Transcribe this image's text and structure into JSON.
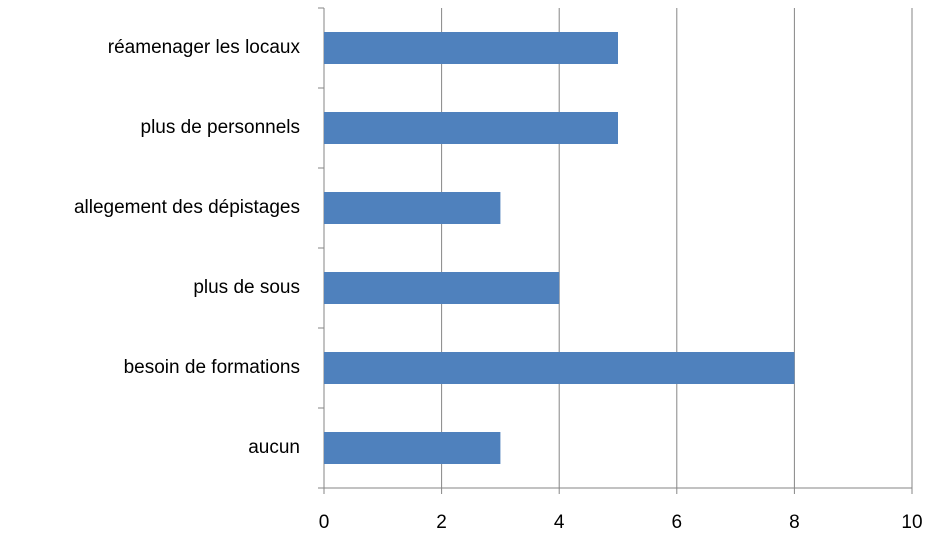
{
  "chart_data": {
    "type": "bar",
    "orientation": "horizontal",
    "categories": [
      "réamenager les locaux",
      "plus de personnels",
      "allegement des dépistages",
      "plus de sous",
      "besoin de formations",
      "aucun"
    ],
    "values": [
      5,
      5,
      3,
      4,
      8,
      3
    ],
    "color": "#4f81bd",
    "xlim": [
      0,
      10
    ],
    "xticks": [
      0,
      2,
      4,
      6,
      8,
      10
    ],
    "grid": true
  }
}
